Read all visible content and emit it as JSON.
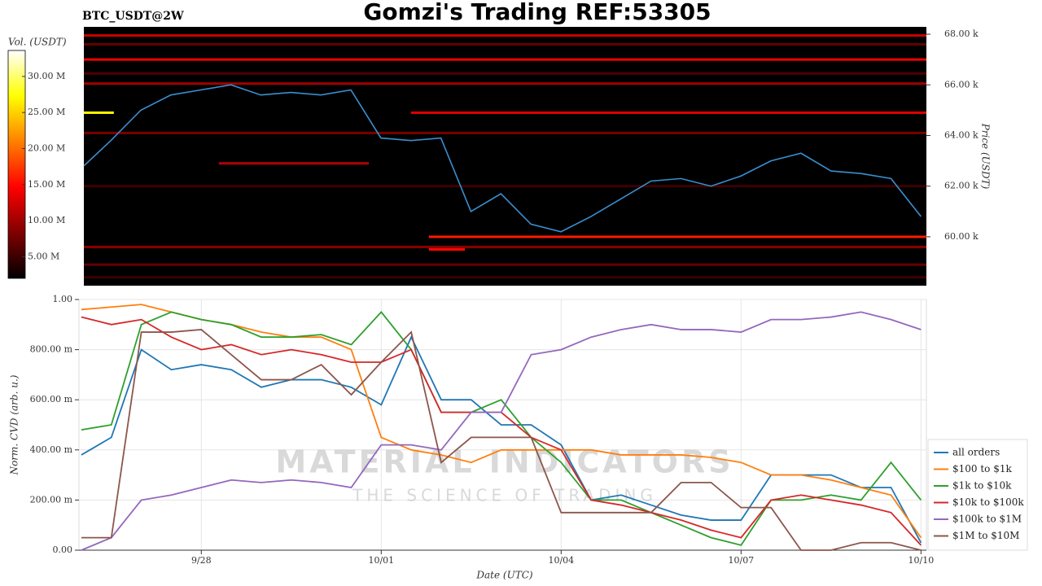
{
  "title": "Gomzi's Trading REF:53305",
  "chart_data": [
    {
      "type": "heatmap",
      "title": "BTC_USDT@2W",
      "colorbar_label": "Vol. (USDT)",
      "ylabel": "Price (USDT)",
      "xlim": [
        -1.95,
        12.09
      ],
      "ylim": [
        58070,
        68290
      ],
      "yticks": [
        {
          "value": 60000,
          "label": "60.00 k"
        },
        {
          "value": 62000,
          "label": "62.00 k"
        },
        {
          "value": 64000,
          "label": "64.00 k"
        },
        {
          "value": 66000,
          "label": "66.00 k"
        },
        {
          "value": 68000,
          "label": "68.00 k"
        }
      ],
      "zlim": [
        2000000,
        33600000
      ],
      "zticks": [
        {
          "value": 5000000,
          "label": "5.00 M"
        },
        {
          "value": 10000000,
          "label": "10.00 M"
        },
        {
          "value": 15000000,
          "label": "15.00 M"
        },
        {
          "value": 20000000,
          "label": "20.00 M"
        },
        {
          "value": 25000000,
          "label": "25.00 M"
        },
        {
          "value": 30000000,
          "label": "30.00 M"
        }
      ],
      "levels": [
        {
          "price": 67950,
          "volume": 12000000,
          "start": -1.95,
          "end": 12.09
        },
        {
          "price": 67600,
          "volume": 7000000,
          "start": -1.95,
          "end": 12.09
        },
        {
          "price": 67000,
          "volume": 14000000,
          "start": -1.95,
          "end": 12.09
        },
        {
          "price": 66450,
          "volume": 6000000,
          "start": -1.95,
          "end": 12.09
        },
        {
          "price": 66050,
          "volume": 10000000,
          "start": -1.95,
          "end": 12.09
        },
        {
          "price": 64900,
          "volume": 13000000,
          "start": 3.5,
          "end": 12.09
        },
        {
          "price": 64900,
          "volume": 27000000,
          "start": -1.95,
          "end": -1.45
        },
        {
          "price": 64100,
          "volume": 8000000,
          "start": -1.95,
          "end": 12.09
        },
        {
          "price": 62900,
          "volume": 11000000,
          "start": 0.3,
          "end": 2.8
        },
        {
          "price": 62000,
          "volume": 5000000,
          "start": -1.95,
          "end": 12.09
        },
        {
          "price": 60000,
          "volume": 16000000,
          "start": 3.8,
          "end": 12.09
        },
        {
          "price": 59600,
          "volume": 9000000,
          "start": -1.95,
          "end": 12.09
        },
        {
          "price": 59500,
          "volume": 15000000,
          "start": 3.8,
          "end": 4.4
        },
        {
          "price": 58900,
          "volume": 7000000,
          "start": -1.95,
          "end": 12.09
        },
        {
          "price": 58400,
          "volume": 5000000,
          "start": -1.95,
          "end": 12.09
        }
      ],
      "x": [
        -1.95,
        -1.5,
        -1,
        -0.5,
        0,
        0.5,
        1,
        1.5,
        2,
        2.5,
        3,
        3.5,
        4,
        4.5,
        5,
        5.5,
        6,
        6.5,
        7,
        7.5,
        8,
        8.5,
        9,
        9.5,
        10,
        10.5,
        11,
        11.5,
        12
      ],
      "series": [
        {
          "color": "#3a8fd0",
          "values": [
            62800,
            63800,
            65000,
            65600,
            65800,
            66000,
            65600,
            65700,
            65600,
            65800,
            63900,
            63800,
            63900,
            61000,
            61700,
            60500,
            60200,
            60800,
            61500,
            62200,
            62300,
            62000,
            62400,
            63000,
            63300,
            62600,
            62500,
            62300,
            60800
          ]
        }
      ]
    },
    {
      "type": "line",
      "ylabel": "Norm. CVD (arb. u.)",
      "xlabel": "Date (UTC)",
      "grid": true,
      "watermark": [
        "MATERIAL INDICATORS",
        "THE SCIENCE OF TRADING"
      ],
      "xlim": [
        -2.04,
        12.09
      ],
      "ylim": [
        0,
        1
      ],
      "xticks": [
        {
          "value": 0,
          "label": "9/28"
        },
        {
          "value": 3,
          "label": "10/01"
        },
        {
          "value": 6,
          "label": "10/04"
        },
        {
          "value": 9,
          "label": "10/07"
        },
        {
          "value": 12,
          "label": "10/10"
        }
      ],
      "yticks": [
        {
          "value": 0,
          "label": "0.00"
        },
        {
          "value": 0.2,
          "label": "200.00 m"
        },
        {
          "value": 0.4,
          "label": "400.00 m"
        },
        {
          "value": 0.6,
          "label": "600.00 m"
        },
        {
          "value": 0.8,
          "label": "800.00 m"
        },
        {
          "value": 1,
          "label": "1.00"
        }
      ],
      "x": [
        -2,
        -1.5,
        -1,
        -0.5,
        0,
        0.5,
        1,
        1.5,
        2,
        2.5,
        3,
        3.5,
        4,
        4.5,
        5,
        5.5,
        6,
        6.5,
        7,
        7.5,
        8,
        8.5,
        9,
        9.5,
        10,
        10.5,
        11,
        11.5,
        12
      ],
      "series": [
        {
          "name": "all orders",
          "color": "#1f77b4",
          "values": [
            0.38,
            0.45,
            0.8,
            0.72,
            0.74,
            0.72,
            0.65,
            0.68,
            0.68,
            0.65,
            0.58,
            0.85,
            0.6,
            0.6,
            0.5,
            0.5,
            0.42,
            0.2,
            0.22,
            0.18,
            0.14,
            0.12,
            0.12,
            0.3,
            0.3,
            0.3,
            0.25,
            0.25,
            0.03
          ]
        },
        {
          "name": "$100 to $1k",
          "color": "#ff7f0e",
          "values": [
            0.96,
            0.97,
            0.98,
            0.95,
            0.92,
            0.9,
            0.87,
            0.85,
            0.85,
            0.8,
            0.45,
            0.4,
            0.38,
            0.35,
            0.4,
            0.4,
            0.4,
            0.4,
            0.38,
            0.38,
            0.38,
            0.37,
            0.35,
            0.3,
            0.3,
            0.28,
            0.25,
            0.22,
            0.05
          ]
        },
        {
          "name": "$1k to $10k",
          "color": "#2ca02c",
          "values": [
            0.48,
            0.5,
            0.9,
            0.95,
            0.92,
            0.9,
            0.85,
            0.85,
            0.86,
            0.82,
            0.95,
            0.8,
            0.55,
            0.55,
            0.6,
            0.45,
            0.35,
            0.2,
            0.2,
            0.15,
            0.1,
            0.05,
            0.02,
            0.2,
            0.2,
            0.22,
            0.2,
            0.35,
            0.2
          ]
        },
        {
          "name": "$10k to $100k",
          "color": "#d62728",
          "values": [
            0.93,
            0.9,
            0.92,
            0.85,
            0.8,
            0.82,
            0.78,
            0.8,
            0.78,
            0.75,
            0.75,
            0.8,
            0.55,
            0.55,
            0.55,
            0.45,
            0.4,
            0.2,
            0.18,
            0.15,
            0.12,
            0.08,
            0.05,
            0.2,
            0.22,
            0.2,
            0.18,
            0.15,
            0.02
          ]
        },
        {
          "name": "$100k to $1M",
          "color": "#9467bd",
          "values": [
            0.0,
            0.05,
            0.2,
            0.22,
            0.25,
            0.28,
            0.27,
            0.28,
            0.27,
            0.25,
            0.42,
            0.42,
            0.4,
            0.55,
            0.55,
            0.78,
            0.8,
            0.85,
            0.88,
            0.9,
            0.88,
            0.88,
            0.87,
            0.92,
            0.92,
            0.93,
            0.95,
            0.92,
            0.88
          ]
        },
        {
          "name": "$1M to $10M",
          "color": "#8c564b",
          "values": [
            0.05,
            0.05,
            0.87,
            0.87,
            0.88,
            0.78,
            0.68,
            0.68,
            0.74,
            0.62,
            0.75,
            0.87,
            0.35,
            0.45,
            0.45,
            0.45,
            0.15,
            0.15,
            0.15,
            0.15,
            0.27,
            0.27,
            0.17,
            0.17,
            0.0,
            0.0,
            0.03,
            0.03,
            0.0
          ]
        }
      ]
    }
  ]
}
